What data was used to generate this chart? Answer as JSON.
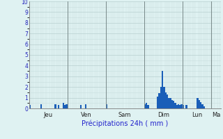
{
  "title": "Précipitations 24h ( mm )",
  "ylim": [
    0,
    10
  ],
  "yticks": [
    0,
    1,
    2,
    3,
    4,
    5,
    6,
    7,
    8,
    9,
    10
  ],
  "background_color": "#dff2f2",
  "bar_color": "#1a5eb8",
  "grid_color_major": "#b8d0d0",
  "grid_color_minor": "#c8dede",
  "day_line_color": "#7a8a8a",
  "xlabel_color": "#2222cc",
  "day_labels": [
    "Jeu",
    "Ven",
    "Sam",
    "Dim",
    "Lun",
    "Ma"
  ],
  "day_positions": [
    0,
    24,
    48,
    72,
    96,
    114
  ],
  "n_bars": 120,
  "bar_values": [
    0.3,
    0.0,
    0.0,
    0.0,
    0.0,
    0.0,
    0.0,
    0.4,
    0.0,
    0.0,
    0.0,
    0.0,
    0.0,
    0.0,
    0.0,
    0.0,
    0.4,
    0.0,
    0.3,
    0.0,
    0.0,
    0.5,
    0.3,
    0.4,
    0.0,
    0.0,
    0.0,
    0.0,
    0.0,
    0.0,
    0.0,
    0.0,
    0.3,
    0.0,
    0.0,
    0.4,
    0.0,
    0.0,
    0.0,
    0.0,
    0.0,
    0.0,
    0.0,
    0.0,
    0.0,
    0.0,
    0.0,
    0.0,
    0.4,
    0.0,
    0.0,
    0.0,
    0.0,
    0.0,
    0.0,
    0.0,
    0.0,
    0.0,
    0.0,
    0.0,
    0.0,
    0.0,
    0.0,
    0.0,
    0.0,
    0.0,
    0.0,
    0.0,
    0.0,
    0.0,
    0.0,
    0.0,
    0.4,
    0.5,
    0.3,
    0.0,
    0.0,
    0.0,
    0.0,
    0.0,
    1.1,
    1.4,
    2.0,
    3.5,
    2.0,
    1.5,
    1.3,
    1.0,
    1.0,
    0.8,
    0.7,
    0.5,
    0.3,
    0.4,
    0.3,
    0.4,
    0.3,
    0.0,
    0.3,
    0.0,
    0.0,
    0.0,
    0.0,
    0.0,
    0.0,
    1.0,
    0.8,
    0.6,
    0.4,
    0.2,
    0.0,
    0.0,
    0.0,
    0.0,
    0.0,
    0.0,
    0.0,
    0.0,
    0.0,
    0.0
  ]
}
